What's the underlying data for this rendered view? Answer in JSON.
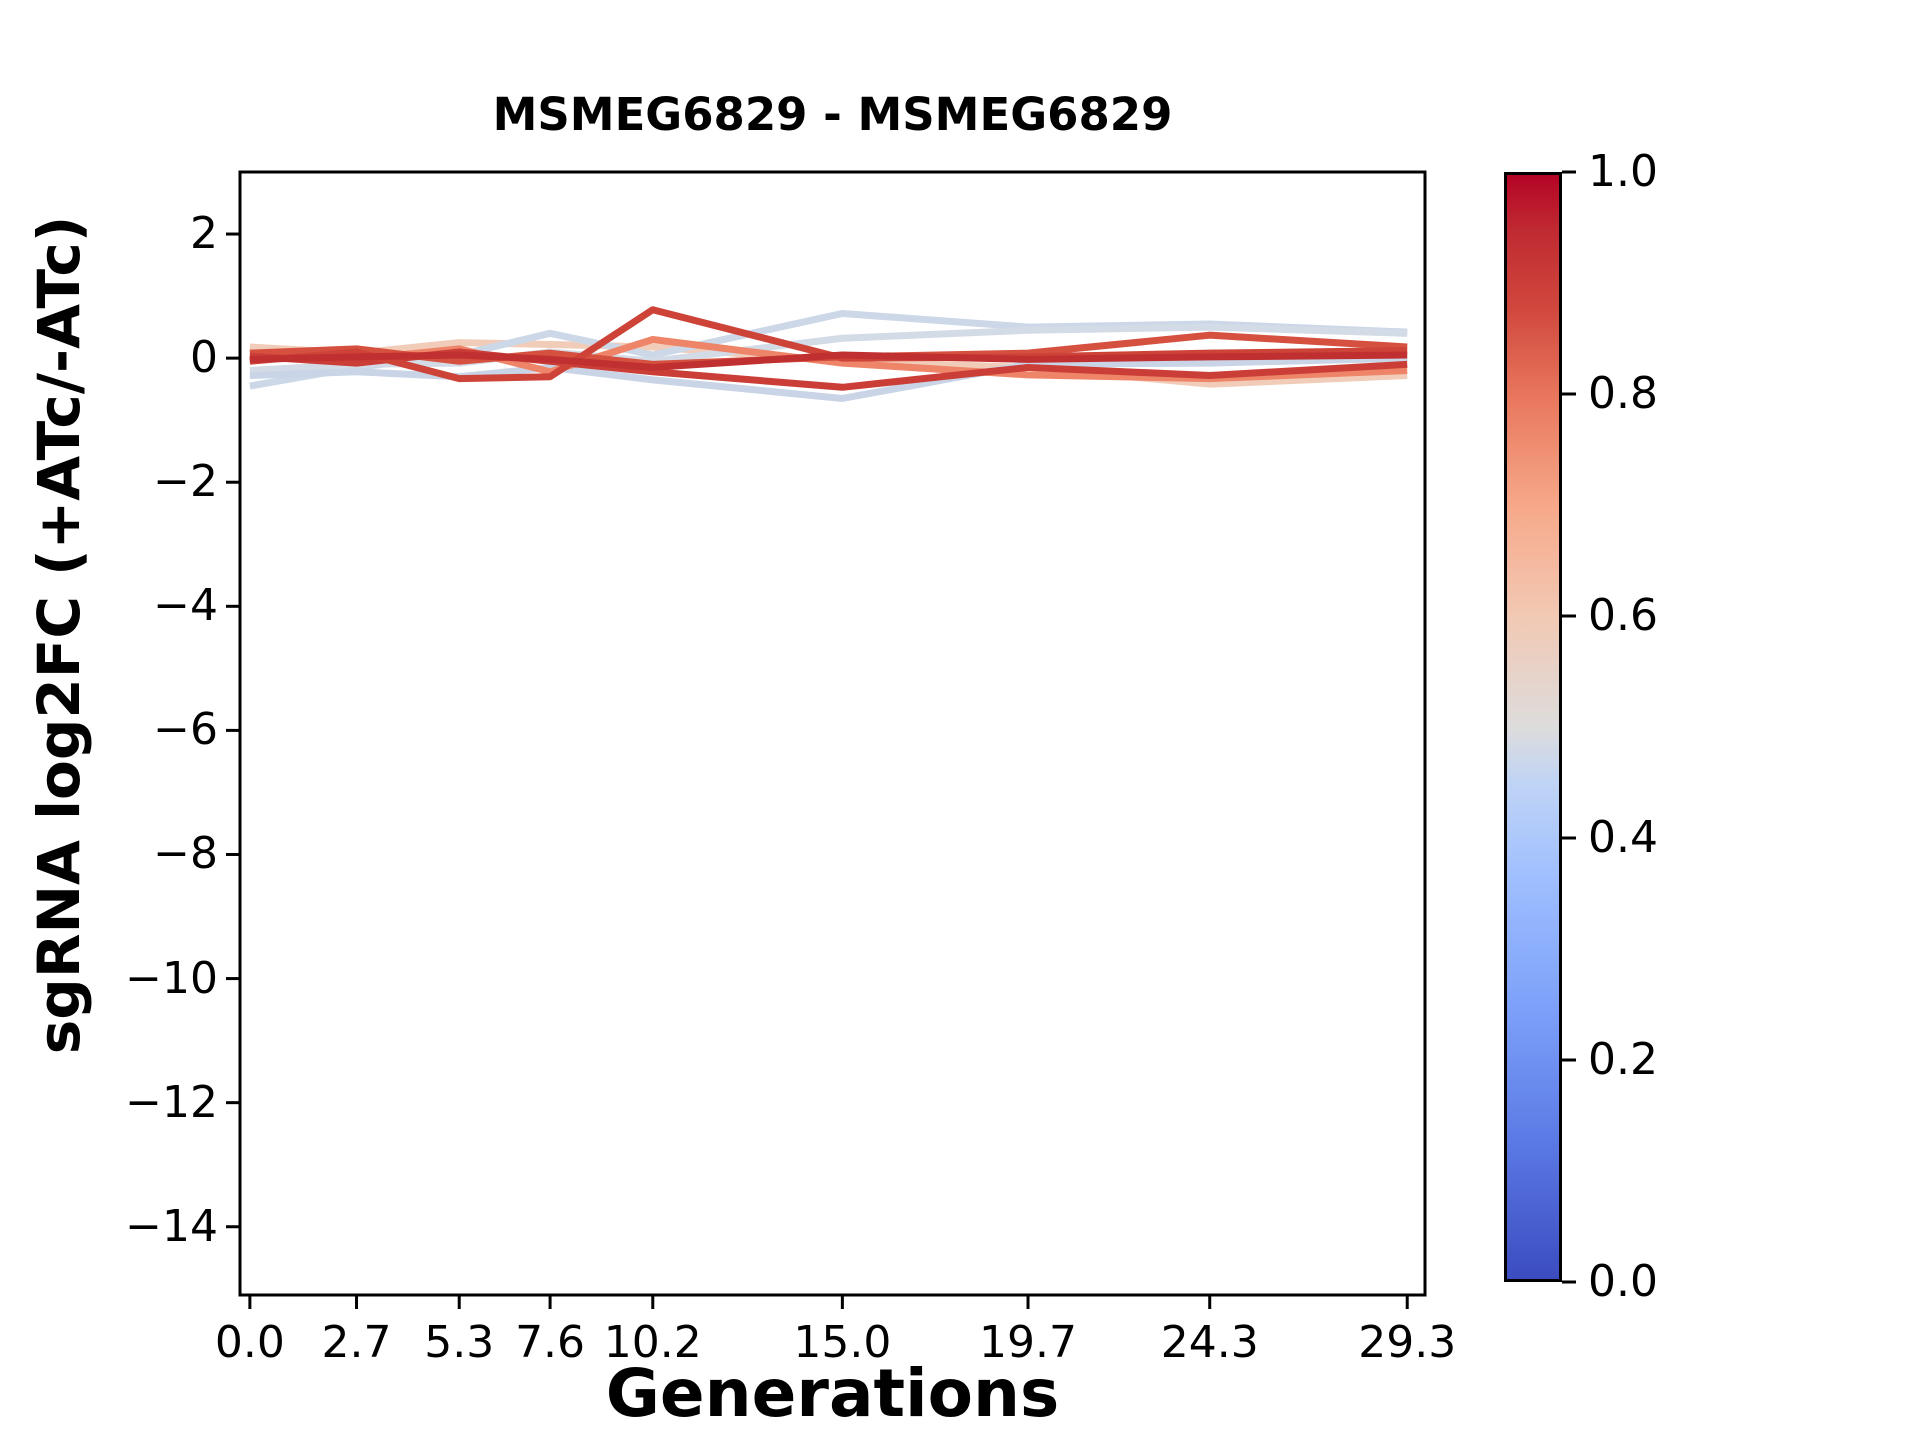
{
  "title": "MSMEG6829 - MSMEG6829",
  "xlabel": "Generations",
  "ylabel": "sgRNA log2FC (+ATc/-ATc)",
  "chart_data": {
    "type": "line",
    "x": [
      0.0,
      2.7,
      5.3,
      7.6,
      10.2,
      15.0,
      19.7,
      24.3,
      29.3
    ],
    "x_tick_labels": [
      "0.0",
      "2.7",
      "5.3",
      "7.6",
      "10.2",
      "15.0",
      "19.7",
      "24.3",
      "29.3"
    ],
    "y_ticks": [
      2,
      0,
      -2,
      -4,
      -6,
      -8,
      -10,
      -12,
      -14
    ],
    "y_tick_labels": [
      "2",
      "0",
      "−2",
      "−4",
      "−6",
      "−8",
      "−10",
      "−12",
      "−14"
    ],
    "xlim": [
      -0.25,
      29.75
    ],
    "ylim": [
      -15.1,
      3.0
    ],
    "grid": false,
    "line_width": 7,
    "series": [
      {
        "colormap_value": 0.6,
        "color": "#f1ccb9",
        "values": [
          0.18,
          0.08,
          0.25,
          0.22,
          0.18,
          -0.05,
          -0.15,
          -0.42,
          -0.28
        ]
      },
      {
        "colormap_value": 0.44,
        "color": "#ccd7e8",
        "values": [
          -0.45,
          -0.15,
          0.05,
          0.4,
          0.05,
          0.72,
          0.5,
          0.55,
          0.42
        ]
      },
      {
        "colormap_value": 0.46,
        "color": "#d3dbe7",
        "values": [
          -0.2,
          -0.1,
          -0.08,
          0.1,
          -0.05,
          0.32,
          0.45,
          0.5,
          0.4
        ]
      },
      {
        "colormap_value": 0.43,
        "color": "#c9d4e6",
        "values": [
          -0.28,
          -0.22,
          -0.3,
          -0.15,
          -0.35,
          -0.65,
          -0.1,
          -0.08,
          0.0
        ]
      },
      {
        "colormap_value": 0.76,
        "color": "#ee8468",
        "values": [
          0.05,
          -0.02,
          0.15,
          -0.22,
          0.3,
          -0.08,
          -0.27,
          -0.33,
          -0.2
        ]
      },
      {
        "colormap_value": 0.87,
        "color": "#d5503f",
        "values": [
          0.08,
          0.15,
          -0.05,
          0.08,
          -0.1,
          0.02,
          0.08,
          0.37,
          0.18
        ]
      },
      {
        "colormap_value": 0.9,
        "color": "#ca3e37",
        "values": [
          0.03,
          -0.08,
          0.1,
          -0.05,
          -0.22,
          -0.47,
          -0.15,
          -0.28,
          -0.1
        ]
      },
      {
        "colormap_value": 0.92,
        "color": "#cd4338",
        "values": [
          -0.05,
          0.1,
          -0.33,
          -0.3,
          0.78,
          0.0,
          0.02,
          0.08,
          0.12
        ]
      },
      {
        "colormap_value": 0.97,
        "color": "#c03031",
        "values": [
          -0.02,
          0.02,
          0.05,
          -0.02,
          -0.15,
          0.05,
          -0.02,
          0.02,
          0.05
        ]
      }
    ]
  },
  "colorbar": {
    "colormap": "coolwarm",
    "tick_labels": [
      "1.0",
      "0.8",
      "0.6",
      "0.4",
      "0.2",
      "0.0"
    ],
    "tick_values": [
      1.0,
      0.8,
      0.6,
      0.4,
      0.2,
      0.0
    ],
    "top_color": "#b40426",
    "mid_color": "#dddcdc",
    "bottom_color": "#3b4cc0"
  }
}
